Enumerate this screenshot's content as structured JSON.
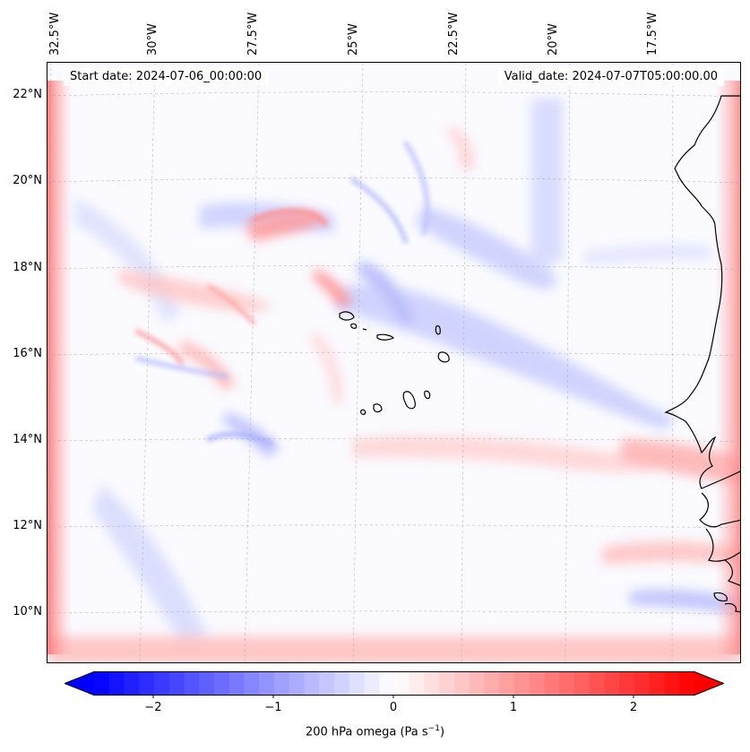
{
  "header": {
    "start_date": "Start date: 2024-07-06_00:00:00",
    "valid_date": "Valid_date: 2024-07-07T05:00:00.00"
  },
  "map": {
    "longitude_labels": [
      "32.5°W",
      "30°W",
      "27.5°W",
      "25°W",
      "22.5°W",
      "20°W",
      "17.5°W"
    ],
    "latitude_labels": [
      "22°N",
      "20°N",
      "18°N",
      "16°N",
      "14°N",
      "12°N",
      "10°N"
    ],
    "gridlines": true,
    "coastline_color": "#000000"
  },
  "colorbar": {
    "tick_labels": [
      "−2",
      "−1",
      "0",
      "1",
      "2"
    ],
    "label": "200 hPa omega (Pa s",
    "label_superscript": "−1",
    "label_suffix": ")",
    "min_color": "#0000ff",
    "mid_color": "#ffffff",
    "max_color": "#ff0000",
    "extend": "both"
  }
}
